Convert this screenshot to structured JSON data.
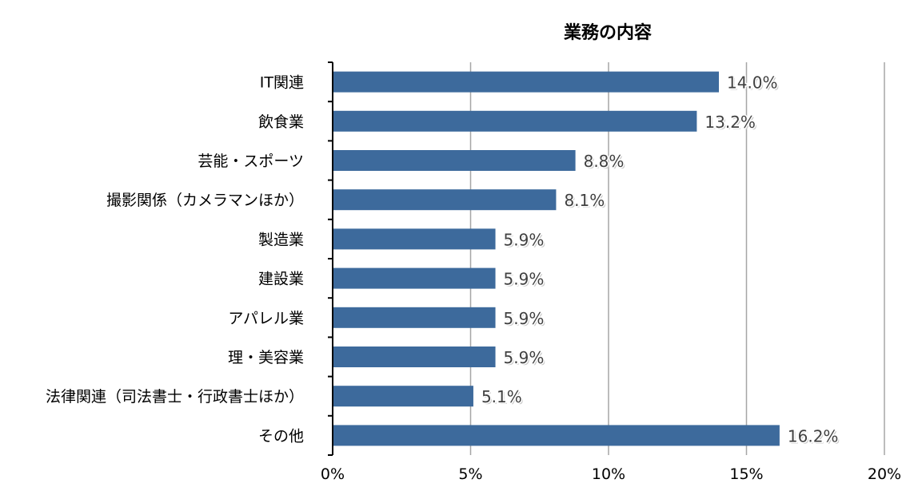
{
  "chart_data": {
    "type": "bar",
    "orientation": "horizontal",
    "title": "業務の内容",
    "categories": [
      "IT関連",
      "飲食業",
      "芸能・スポーツ",
      "撮影関係（カメラマンほか）",
      "製造業",
      "建設業",
      "アパレル業",
      "理・美容業",
      "法律関連（司法書士・行政書士ほか）",
      "その他"
    ],
    "values": [
      14.0,
      13.2,
      8.8,
      8.1,
      5.9,
      5.9,
      5.9,
      5.9,
      5.1,
      16.2
    ],
    "data_labels": [
      "14.0%",
      "13.2%",
      "8.8%",
      "8.1%",
      "5.9%",
      "5.9%",
      "5.9%",
      "5.9%",
      "5.1%",
      "16.2%"
    ],
    "xlim": [
      0,
      20
    ],
    "x_ticks": [
      0,
      5,
      10,
      15,
      20
    ],
    "x_tick_labels": [
      "0%",
      "5%",
      "10%",
      "15%",
      "20%"
    ],
    "xlabel": "",
    "ylabel": "",
    "grid": "vertical",
    "legend": "none",
    "bar_color": "#3d6a9c"
  }
}
